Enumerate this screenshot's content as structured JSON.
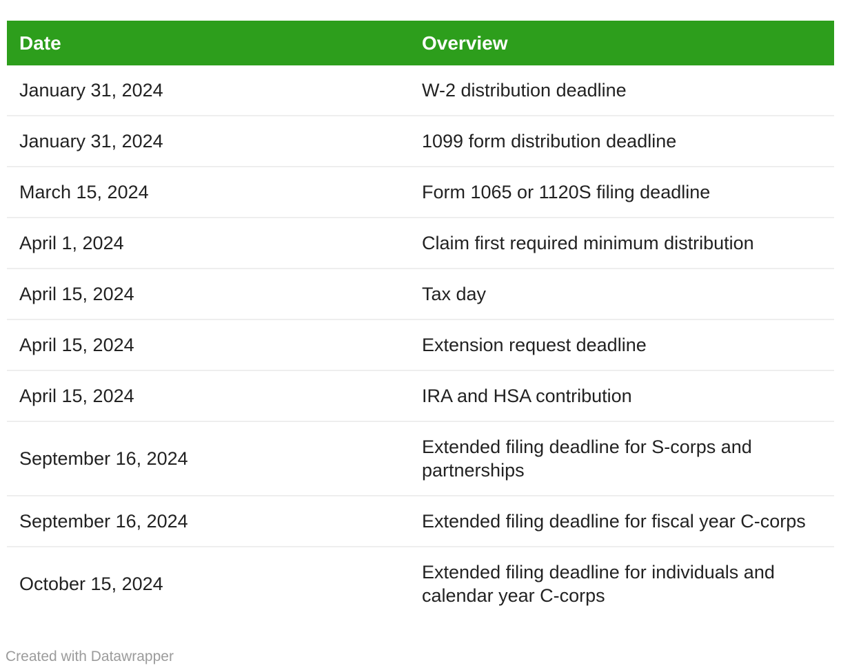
{
  "chart_data": {
    "type": "table",
    "columns": [
      "Date",
      "Overview"
    ],
    "rows": [
      {
        "date": "January 31, 2024",
        "overview": "W-2 distribution deadline"
      },
      {
        "date": "January 31, 2024",
        "overview": "1099 form distribution deadline"
      },
      {
        "date": "March 15, 2024",
        "overview": "Form 1065 or 1120S filing deadline"
      },
      {
        "date": "April 1, 2024",
        "overview": "Claim first required minimum distribution"
      },
      {
        "date": "April 15, 2024",
        "overview": "Tax day"
      },
      {
        "date": "April 15, 2024",
        "overview": "Extension request deadline"
      },
      {
        "date": "April 15, 2024",
        "overview": "IRA and HSA contribution"
      },
      {
        "date": "September 16, 2024",
        "overview": "Extended filing deadline for S-corps and\npartnerships"
      },
      {
        "date": "September 16, 2024",
        "overview": "Extended filing deadline for fiscal year C-corps"
      },
      {
        "date": "October 15, 2024",
        "overview": "Extended filing deadline for individuals and\ncalendar year C-corps"
      }
    ],
    "layout": {
      "grid": "horizontal row dividers only",
      "header_style": "solid green bar, white bold text",
      "legend": "none"
    }
  },
  "colors": {
    "header_bg": "#2D9E1C",
    "header_text": "#ffffff",
    "body_text": "#222222",
    "row_divider": "#eeeeee",
    "credit_text": "#9b9b9b",
    "page_bg": "#ffffff"
  },
  "footer": {
    "credit": "Created with Datawrapper"
  }
}
